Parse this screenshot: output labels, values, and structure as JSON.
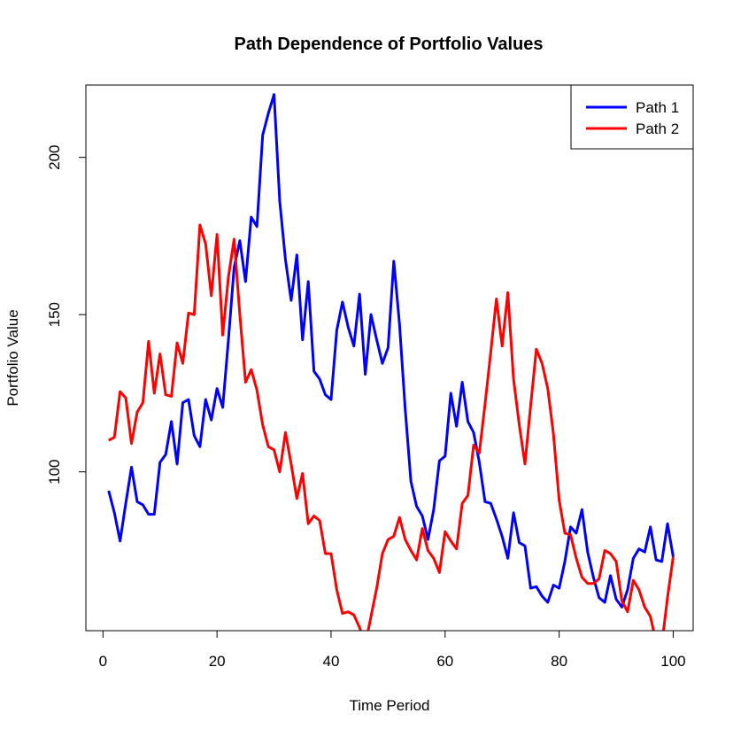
{
  "chart_data": {
    "type": "line",
    "title": "Path Dependence of Portfolio Values",
    "xlabel": "Time Period",
    "ylabel": "Portfolio Value",
    "xlim": [
      -3.0,
      103.5
    ],
    "ylim": [
      49.5,
      223
    ],
    "xticks": [
      0,
      20,
      40,
      60,
      80,
      100
    ],
    "yticks": [
      100,
      150,
      200
    ],
    "grid": false,
    "legend_position": "top-right",
    "series": [
      {
        "name": "Path 1",
        "color": "#0000ff",
        "x": [
          1,
          2,
          3,
          4,
          5,
          6,
          7,
          8,
          9,
          10,
          11,
          12,
          13,
          14,
          15,
          16,
          17,
          18,
          19,
          20,
          21,
          22,
          23,
          24,
          25,
          26,
          27,
          28,
          29,
          30,
          31,
          32,
          33,
          34,
          35,
          36,
          37,
          38,
          39,
          40,
          41,
          42,
          43,
          44,
          45,
          46,
          47,
          48,
          49,
          50,
          51,
          52,
          53,
          54,
          55,
          56,
          57,
          58,
          59,
          60,
          61,
          62,
          63,
          64,
          65,
          66,
          67,
          68,
          69,
          70,
          71,
          72,
          73,
          74,
          75,
          76,
          77,
          78,
          79,
          80,
          81,
          82,
          83,
          84,
          85,
          86,
          87,
          88,
          89,
          90,
          91,
          92,
          93,
          94,
          95,
          96,
          97,
          98,
          99,
          100
        ],
        "values": [
          94,
          87,
          78,
          90,
          101.5,
          90.5,
          89.5,
          86.5,
          86.5,
          103,
          105.5,
          116,
          102.5,
          122,
          123,
          111.5,
          108,
          123,
          116.5,
          126.5,
          120.5,
          142,
          165,
          173.5,
          160.5,
          181,
          178,
          207,
          214,
          220,
          186,
          167.5,
          154.5,
          169,
          142,
          160.5,
          132,
          129.5,
          124.5,
          123,
          145,
          154,
          146,
          140,
          156.5,
          131,
          150,
          142,
          134.5,
          139.5,
          167,
          147,
          120,
          97,
          89,
          86,
          78.5,
          88,
          103.5,
          105,
          125,
          114.5,
          128.5,
          116,
          112.5,
          103,
          90.5,
          90,
          85,
          79.5,
          72.5,
          87,
          77.5,
          76.5,
          63,
          63.5,
          60.5,
          58.5,
          64,
          63,
          71.5,
          82.5,
          80.5,
          88,
          74.5,
          66.5,
          60,
          58.5,
          67,
          59.5,
          57,
          62.5,
          72.5,
          75.5,
          74.5,
          82.5,
          72,
          71.5,
          83.5,
          73
        ]
      },
      {
        "name": "Path 2",
        "color": "#ff0000",
        "x": [
          1,
          2,
          3,
          4,
          5,
          6,
          7,
          8,
          9,
          10,
          11,
          12,
          13,
          14,
          15,
          16,
          17,
          18,
          19,
          20,
          21,
          22,
          23,
          24,
          25,
          26,
          27,
          28,
          29,
          30,
          31,
          32,
          33,
          34,
          35,
          36,
          37,
          38,
          39,
          40,
          41,
          42,
          43,
          44,
          45,
          46,
          47,
          48,
          49,
          50,
          51,
          52,
          53,
          54,
          55,
          56,
          57,
          58,
          59,
          60,
          61,
          62,
          63,
          64,
          65,
          66,
          67,
          68,
          69,
          70,
          71,
          72,
          73,
          74,
          75,
          76,
          77,
          78,
          79,
          80,
          81,
          82,
          83,
          84,
          85,
          86,
          87,
          88,
          89,
          90,
          91,
          92,
          93,
          94,
          95,
          96,
          97,
          98,
          99,
          100
        ],
        "values": [
          110,
          111,
          125.5,
          123.5,
          109,
          119,
          122,
          141.5,
          125,
          137.5,
          124.5,
          124,
          141,
          134.5,
          150.5,
          150,
          178.5,
          172.5,
          156,
          175.5,
          143.5,
          162,
          174,
          150,
          128.5,
          132.5,
          126,
          115,
          108,
          107,
          100,
          112.5,
          102.5,
          91.5,
          99.5,
          83.5,
          86,
          84.5,
          74,
          74,
          62.5,
          55,
          55.5,
          54.5,
          50.5,
          45,
          54,
          63,
          74,
          78.5,
          79.5,
          85.5,
          78.5,
          75,
          72,
          82,
          75,
          72.5,
          68,
          81,
          78,
          75.5,
          90,
          92.5,
          108.5,
          106,
          121.5,
          138,
          155,
          140,
          157,
          129.5,
          115,
          102.5,
          121,
          139,
          134.5,
          126.5,
          112,
          91,
          80.5,
          80,
          72.5,
          66.5,
          64.5,
          64.5,
          66,
          75,
          74,
          71.5,
          59,
          55.5,
          65.5,
          62.5,
          57,
          54,
          46,
          45,
          60,
          73
        ]
      }
    ]
  }
}
